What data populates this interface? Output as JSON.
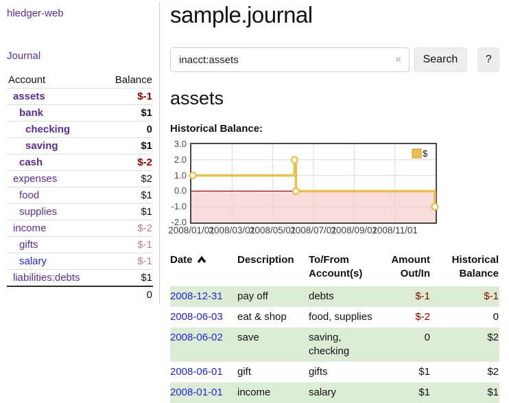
{
  "app": {
    "title": "hledger-web"
  },
  "nav": {
    "journal": "Journal"
  },
  "sidebar": {
    "columns": {
      "account": "Account",
      "balance": "Balance"
    },
    "accounts": [
      {
        "name": "assets",
        "depth": 1,
        "balance": "$-1",
        "active": true
      },
      {
        "name": "bank",
        "depth": 2,
        "balance": "$1",
        "active": true
      },
      {
        "name": "checking",
        "depth": 3,
        "balance": "0",
        "active": true
      },
      {
        "name": "saving",
        "depth": 3,
        "balance": "$1",
        "active": true
      },
      {
        "name": "cash",
        "depth": 2,
        "balance": "$-2",
        "active": true
      },
      {
        "name": "expenses",
        "depth": 1,
        "balance": "$2"
      },
      {
        "name": "food",
        "depth": 2,
        "balance": "$1"
      },
      {
        "name": "supplies",
        "depth": 2,
        "balance": "$1"
      },
      {
        "name": "income",
        "depth": 1,
        "balance": "$-2"
      },
      {
        "name": "gifts",
        "depth": 2,
        "balance": "$-1"
      },
      {
        "name": "salary",
        "depth": 2,
        "balance": "$-1",
        "link_style": "blue"
      },
      {
        "name": "liabilities:debts",
        "depth": 1,
        "balance": "$1"
      }
    ],
    "total": "0"
  },
  "main": {
    "title": "sample.journal",
    "search": {
      "value": "inacct:assets",
      "clear_icon": "×",
      "button_label": "Search",
      "help_label": "?"
    },
    "account_heading": "assets",
    "chart_heading": "Historical Balance:"
  },
  "chart_data": {
    "type": "line",
    "step": true,
    "title": "Historical Balance",
    "legend": [
      {
        "label": "$",
        "color": "#e7c04f"
      }
    ],
    "legend_position": "top-right",
    "grid": true,
    "ylim": [
      -2,
      3
    ],
    "y_ticks": [
      "3.0",
      "2.0",
      "1.0",
      "0.0",
      "-1.0",
      "-2.0"
    ],
    "x_ticks": [
      "2008/01/01",
      "2008/03/01",
      "2008/05/01",
      "2008/07/01",
      "2008/09/01",
      "2008/11/01"
    ],
    "series": [
      {
        "name": "$",
        "points": [
          {
            "date": "2008-01-01",
            "value": 1,
            "x_frac": 0.006
          },
          {
            "date": "2008-06-02",
            "value": 2,
            "x_frac": 0.422
          },
          {
            "date": "2008-06-03",
            "value": 0,
            "x_frac": 0.428
          },
          {
            "date": "2008-12-31",
            "value": -1,
            "x_frac": 0.997
          }
        ]
      }
    ],
    "colors": {
      "line": "#e7c04f",
      "marker_fill": "#ffffff",
      "legend_border": "#bf9b30",
      "negative_area": "#fadbdb",
      "zero_line": "#8c1717",
      "grid": "#d9d9d9",
      "border": "#464646"
    }
  },
  "register": {
    "columns": [
      "Date",
      "Description",
      "To/From Account(s)",
      "Amount Out/In",
      "Historical Balance"
    ],
    "sort": {
      "column": "Date",
      "indicator": "up"
    },
    "rows": [
      {
        "date": "2008-12-31",
        "description": "pay off",
        "accounts": "debts",
        "amount": "$-1",
        "balance": "$-1"
      },
      {
        "date": "2008-06-03",
        "description": "eat & shop",
        "accounts": "food, supplies",
        "amount": "$-2",
        "balance": "0"
      },
      {
        "date": "2008-06-02",
        "description": "save",
        "accounts": "saving, checking",
        "amount": "0",
        "balance": "$2"
      },
      {
        "date": "2008-06-01",
        "description": "gift",
        "accounts": "gifts",
        "amount": "$1",
        "balance": "$2"
      },
      {
        "date": "2008-01-01",
        "description": "income",
        "accounts": "salary",
        "amount": "$1",
        "balance": "$1"
      }
    ]
  },
  "colors": {
    "accent_purple": "#5c2d91",
    "link_blue": "#2424dd",
    "negative_red": "#8b0000",
    "negative_rosy": "#c17f7f",
    "row_green": "#dcecd4"
  }
}
